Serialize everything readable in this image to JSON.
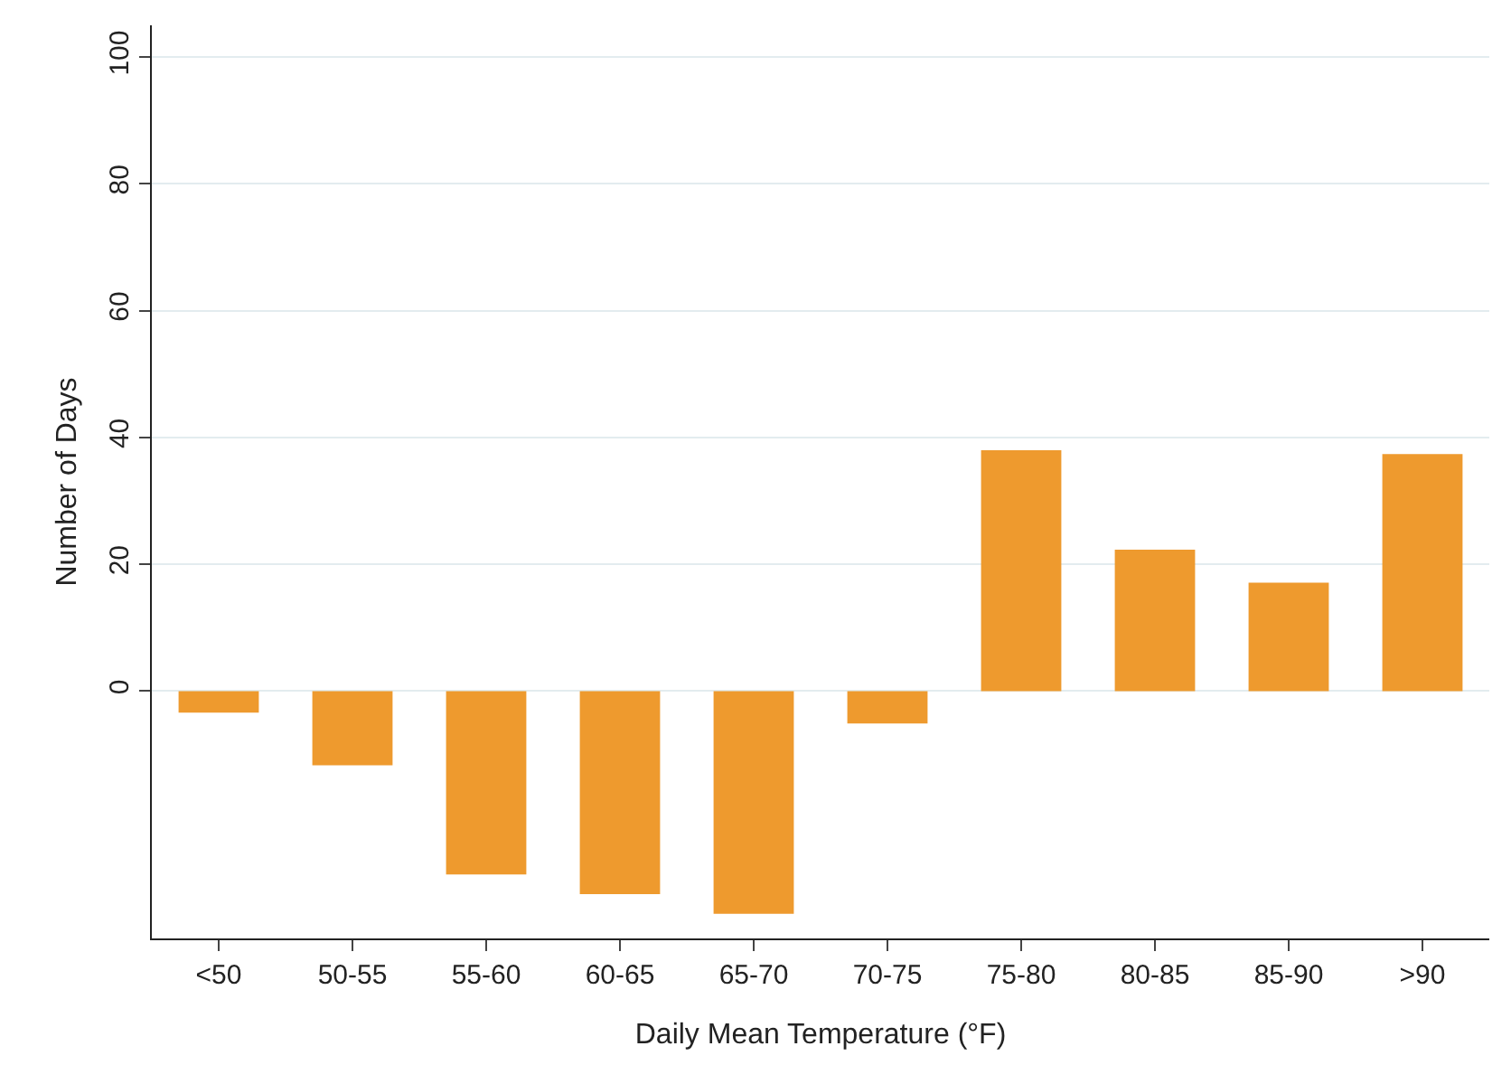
{
  "chart_data": {
    "type": "bar",
    "xlabel": "Daily Mean Temperature (°F)",
    "ylabel": "Number of Days",
    "categories": [
      "<50",
      "50-55",
      "55-60",
      "60-65",
      "65-70",
      "70-75",
      "75-80",
      "80-85",
      "85-90",
      ">90"
    ],
    "values": [
      -3.4,
      -11.7,
      -28.9,
      -32,
      -35.1,
      -5.1,
      38,
      22.3,
      17.1,
      37.4
    ],
    "color": "#ee9a2e",
    "ylim": [
      -39,
      105
    ],
    "yticks": [
      0,
      20,
      40,
      60,
      80,
      100
    ],
    "grid": "y"
  }
}
